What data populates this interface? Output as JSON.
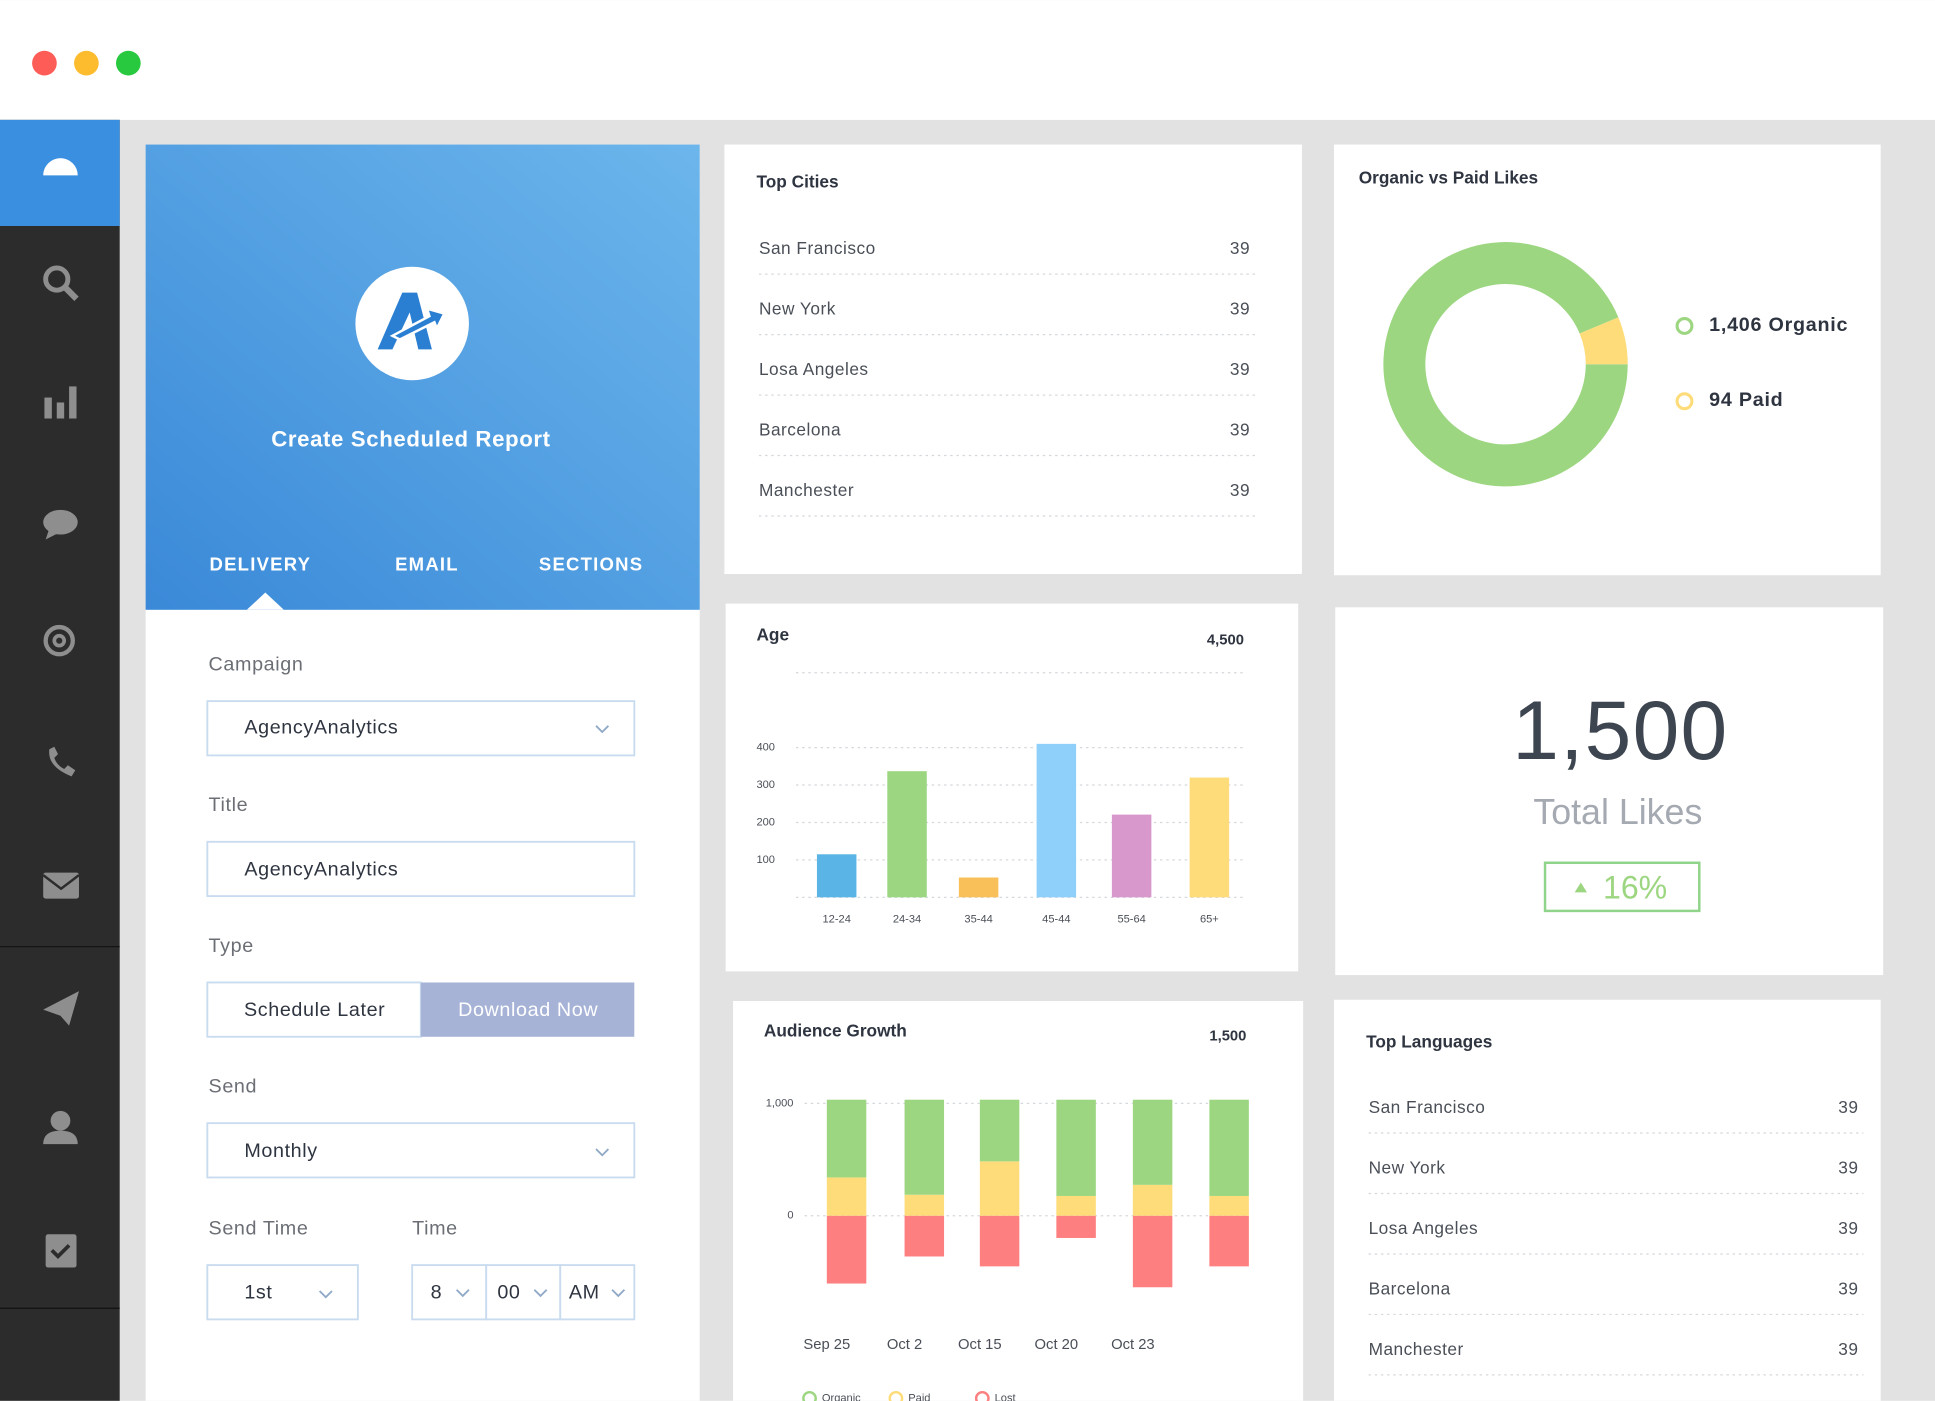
{
  "report": {
    "title": "Create Scheduled Report",
    "tabs": [
      "DELIVERY",
      "EMAIL",
      "SECTIONS"
    ],
    "campaign_label": "Campaign",
    "campaign": "AgencyAnalytics",
    "title_label": "Title",
    "title_value": "AgencyAnalytics",
    "type_label": "Type",
    "type_options": [
      "Schedule Later",
      "Download Now"
    ],
    "send_label": "Send",
    "send": "Monthly",
    "send_time_label": "Send Time",
    "send_time": "1st",
    "time_label": "Time",
    "time": [
      "8",
      "00",
      "AM"
    ]
  },
  "top_cities": {
    "title": "Top Cities",
    "rows": [
      {
        "name": "San Francisco",
        "value": 39
      },
      {
        "name": "New York",
        "value": 39
      },
      {
        "name": "Losa Angeles",
        "value": 39
      },
      {
        "name": "Barcelona",
        "value": 39
      },
      {
        "name": "Manchester",
        "value": 39
      }
    ]
  },
  "kpi": {
    "value": "1,500",
    "label": "Total Likes",
    "change": "16%"
  },
  "top_languages": {
    "title": "Top Languages",
    "rows": [
      {
        "name": "San Francisco",
        "value": 39
      },
      {
        "name": "New York",
        "value": 39
      },
      {
        "name": "Losa Angeles",
        "value": 39
      },
      {
        "name": "Barcelona",
        "value": 39
      },
      {
        "name": "Manchester",
        "value": 39
      }
    ]
  },
  "chart_data": [
    {
      "type": "pie",
      "donut": true,
      "title": "Organic vs Paid Likes",
      "categories": [
        "Organic",
        "Paid"
      ],
      "values": [
        1406,
        94
      ],
      "value_labels": [
        "1,406",
        "94"
      ],
      "colors": [
        "#9dd681",
        "#fedc7a"
      ]
    },
    {
      "type": "bar",
      "title": "Age",
      "annotation": "4,500",
      "categories": [
        "12-24",
        "24-34",
        "35-44",
        "45-44",
        "55-64",
        "65+"
      ],
      "values": [
        115,
        337,
        53,
        410,
        221,
        320
      ],
      "colors": [
        "#5ab4e5",
        "#9dd681",
        "#f9c05a",
        "#8fd0fb",
        "#d998cc",
        "#fedc7a"
      ],
      "ylim": [
        0,
        600
      ],
      "yticks": [
        100,
        200,
        300,
        400
      ],
      "grid": true
    },
    {
      "type": "stacked_bar",
      "title": "Audience Growth",
      "annotation": "1,500",
      "categories": [
        "Sep 25",
        "Oct 2",
        "Oct 15",
        "Oct 20",
        "Oct 23",
        null
      ],
      "series": [
        {
          "name": "Organic",
          "color": "#9dd681",
          "values": [
            692,
            846,
            549,
            857,
            758,
            857
          ]
        },
        {
          "name": "Paid",
          "color": "#fedc7a",
          "values": [
            341,
            187,
            484,
            176,
            275,
            176
          ]
        },
        {
          "name": "Lost",
          "color": "#fe7f7f",
          "values": [
            -604,
            -363,
            -451,
            -198,
            -637,
            -451
          ]
        }
      ],
      "ylim": [
        -1000,
        1000
      ],
      "yticks": [
        {
          "value": 1000,
          "label": "1,000"
        },
        0
      ],
      "grid": true
    }
  ]
}
